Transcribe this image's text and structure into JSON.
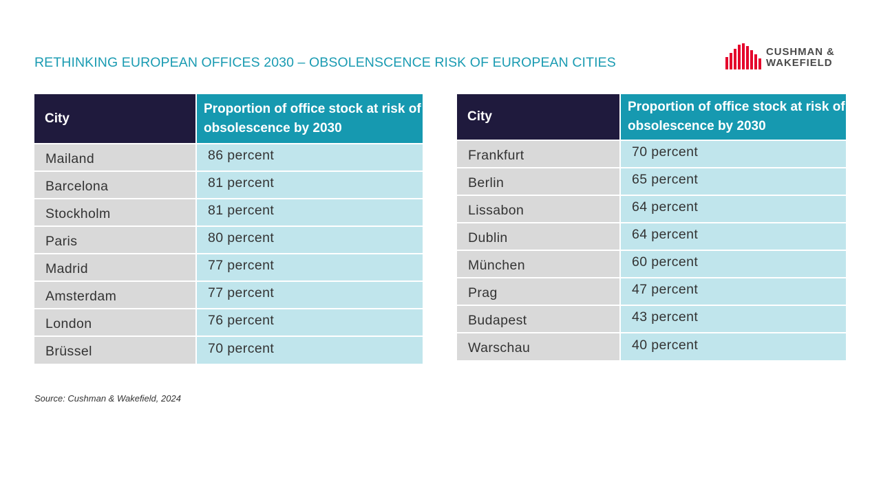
{
  "title": "RETHINKING EUROPEAN OFFICES 2030 – OBSOLENSCENCE RISK OF EUROPEAN CITIES",
  "logo": {
    "line1": "CUSHMAN &",
    "line2": "WAKEFIELD",
    "color": "#e4002b"
  },
  "colors": {
    "title": "#1a9bb2",
    "header_city_bg": "#1f1a3d",
    "header_prop_bg": "#1699b0",
    "cell_city_bg": "#d9d9d9",
    "cell_value_bg": "#c0e5ec"
  },
  "tables": [
    {
      "headers": {
        "city": "City",
        "proportion": "Proportion of office stock at risk of obsolescence by 2030"
      },
      "rows": [
        {
          "city": "Mailand",
          "value": "86 percent"
        },
        {
          "city": "Barcelona",
          "value": "81 percent"
        },
        {
          "city": "Stockholm",
          "value": "81 percent"
        },
        {
          "city": "Paris",
          "value": "80 percent"
        },
        {
          "city": "Madrid",
          "value": "77 percent"
        },
        {
          "city": "Amsterdam",
          "value": "77 percent"
        },
        {
          "city": "London",
          "value": "76 percent"
        },
        {
          "city": "Brüssel",
          "value": "70 percent"
        }
      ]
    },
    {
      "headers": {
        "city": "City",
        "proportion": "Proportion of office stock at risk of obsolescence by 2030"
      },
      "rows": [
        {
          "city": "Frankfurt",
          "value": "70 percent"
        },
        {
          "city": "Berlin",
          "value": "65 percent"
        },
        {
          "city": "Lissabon",
          "value": "64 percent"
        },
        {
          "city": "Dublin",
          "value": "64 percent"
        },
        {
          "city": "München",
          "value": "60 percent"
        },
        {
          "city": "Prag",
          "value": "47 percent"
        },
        {
          "city": "Budapest",
          "value": "43 percent"
        },
        {
          "city": "Warschau",
          "value": "40 percent"
        }
      ]
    }
  ],
  "source": "Source: Cushman & Wakefield, 2024"
}
